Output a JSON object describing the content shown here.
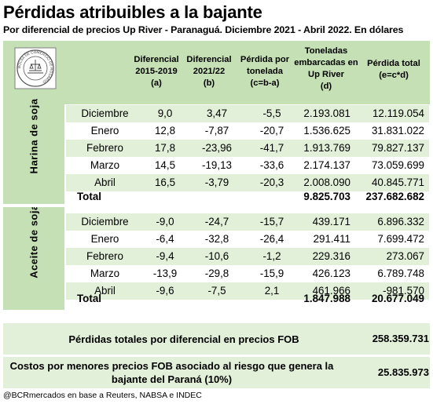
{
  "title": "Pérdidas atribuibles a la bajante",
  "subtitle": "Por diferencial de precios Up River - Paranaguá. Diciembre 2021 - Abril 2022. En dólares",
  "logo_text": "BOLSA DE COMERCIO DE ROSARIO",
  "headers": {
    "c1": [
      "Diferencial",
      "2015-2019",
      "(a)"
    ],
    "c2": [
      "Diferencial",
      "2021/22",
      "(b)"
    ],
    "c3": [
      "Pérdida por",
      "tonelada",
      "(c=b-a)"
    ],
    "c4": [
      "Toneladas",
      "embarcadas en",
      "Up River",
      "(d)"
    ],
    "c5": [
      "Pérdida total",
      "(e=c*d)"
    ]
  },
  "sections": [
    {
      "label": "Harina de soja",
      "rows": [
        {
          "mes": "Diciembre",
          "a": "9,0",
          "b": "3,47",
          "c": "-5,5",
          "d": "2.193.081",
          "e": "12.119.054"
        },
        {
          "mes": "Enero",
          "a": "12,8",
          "b": "-7,87",
          "c": "-20,7",
          "d": "1.536.625",
          "e": "31.831.022"
        },
        {
          "mes": "Febrero",
          "a": "17,8",
          "b": "-23,96",
          "c": "-41,7",
          "d": "1.913.769",
          "e": "79.827.137"
        },
        {
          "mes": "Marzo",
          "a": "14,5",
          "b": "-19,13",
          "c": "-33,6",
          "d": "2.174.137",
          "e": "73.059.699"
        },
        {
          "mes": "Abril",
          "a": "16,5",
          "b": "-3,79",
          "c": "-20,3",
          "d": "2.008.090",
          "e": "40.845.771"
        }
      ],
      "total": {
        "label": "Total",
        "d": "9.825.703",
        "e": "237.682.682"
      }
    },
    {
      "label": "Aceite de soja",
      "rows": [
        {
          "mes": "Diciembre",
          "a": "-9,0",
          "b": "-24,7",
          "c": "-15,7",
          "d": "439.171",
          "e": "6.896.332"
        },
        {
          "mes": "Enero",
          "a": "-6,4",
          "b": "-32,8",
          "c": "-26,4",
          "d": "291.411",
          "e": "7.699.472"
        },
        {
          "mes": "Febrero",
          "a": "-9,4",
          "b": "-10,6",
          "c": "-1,2",
          "d": "229.316",
          "e": "273.067"
        },
        {
          "mes": "Marzo",
          "a": "-13,9",
          "b": "-29,8",
          "c": "-15,9",
          "d": "426.123",
          "e": "6.789.748"
        },
        {
          "mes": "Abril",
          "a": "-9,6",
          "b": "-7,5",
          "c": "2,1",
          "d": "461.966",
          "e": "-981.570"
        }
      ],
      "total": {
        "label": "Total",
        "d": "1.847.988",
        "e": "20.677.049"
      }
    }
  ],
  "summary": [
    {
      "label": "Pérdidas totales por diferencial en precios FOB",
      "value": "258.359.731"
    },
    {
      "label": "Costos por menores precios FOB asociado al riesgo que genera la bajante del Paraná (10%)",
      "value": "25.835.973"
    }
  ],
  "footer": "@BCRmercados en base a Reuters, NABSA e INDEC",
  "colors": {
    "header_green": "#c5e0b4",
    "row_alt": "#e2efd9"
  }
}
